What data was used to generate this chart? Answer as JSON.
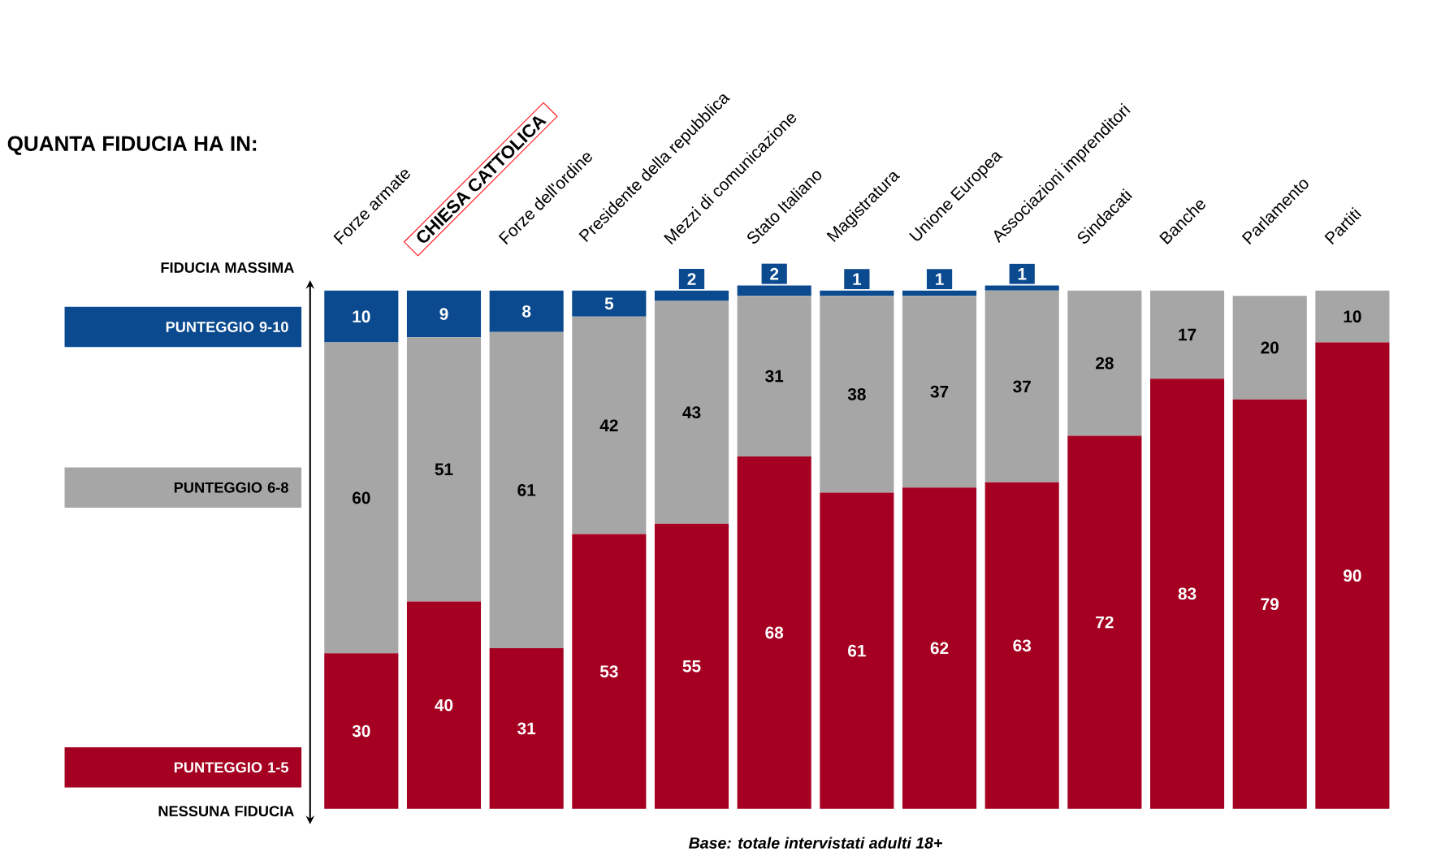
{
  "chart_data": {
    "type": "bar",
    "stacked": true,
    "title": "QUANTA FIDUCIA HA IN:",
    "categories": [
      "Forze armate",
      "CHIESA CATTOLICA",
      "Forze dell'ordine",
      "Presidente della repubblica",
      "Mezzi di comunicazione",
      "Stato Italiano",
      "Magistratura",
      "Unione Europea",
      "Associazioni imprenditori",
      "Sindacati",
      "Banche",
      "Parlamento",
      "Partiti"
    ],
    "series": [
      {
        "name": "PUNTEGGIO 1-5",
        "color": "#a50021",
        "values": [
          30,
          40,
          31,
          53,
          55,
          68,
          61,
          62,
          63,
          72,
          83,
          79,
          90
        ]
      },
      {
        "name": "PUNTEGGIO 6-8",
        "color": "#a6a6a6",
        "values": [
          60,
          51,
          61,
          42,
          43,
          31,
          38,
          37,
          37,
          28,
          17,
          20,
          10
        ]
      },
      {
        "name": "PUNTEGGIO 9-10",
        "color": "#0b4a8f",
        "values": [
          10,
          9,
          8,
          5,
          2,
          2,
          1,
          1,
          1,
          null,
          null,
          null,
          null
        ]
      }
    ],
    "ylim": [
      0,
      101
    ],
    "data_labels": true,
    "legend": "left",
    "annotations": [
      "FIDUCIA MASSIMA",
      "NESSUNA FIDUCIA",
      "Base: totale intervistati adulti 18+"
    ]
  }
}
